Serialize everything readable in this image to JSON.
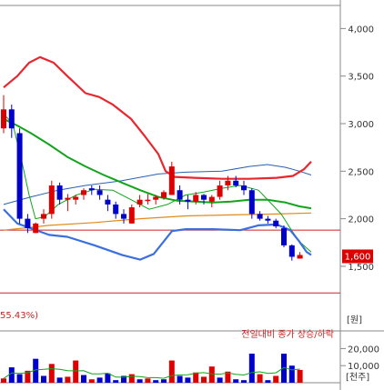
{
  "chart_data": {
    "type": "candlestick",
    "price_axis": {
      "unit": "[원]",
      "ticks": [
        1500,
        2000,
        2500,
        3000,
        3500,
        4000
      ],
      "tick_labels": [
        "1,500",
        "2,000",
        "2,500",
        "3,000",
        "3,500",
        "4,000"
      ],
      "range": [
        1050,
        4300
      ]
    },
    "volume_axis": {
      "unit": "[천주]",
      "ticks": [
        10000,
        20000
      ],
      "tick_labels": [
        "10,000",
        "20,000"
      ],
      "range": [
        0,
        25000
      ]
    },
    "current_price": 1600,
    "current_price_label": "1,600",
    "reference_lines": [
      1880,
      1220
    ],
    "annotation": "55.43%)",
    "volume_title": "전일대비 종가 상승/하락",
    "colors": {
      "up": "#dd0000",
      "down": "#0000cc",
      "bb_upper": "#e8262f",
      "bb_lower": "#3b6fe0",
      "bb_mid": "#2b5fb0",
      "ma_green": "#12a41b",
      "ma_orange": "#e08b1b",
      "ref_line": "#cc2222"
    },
    "candles": [
      {
        "o": 2950,
        "h": 3300,
        "l": 2900,
        "c": 3150
      },
      {
        "o": 3150,
        "h": 3200,
        "l": 2850,
        "c": 2950
      },
      {
        "o": 2900,
        "h": 2950,
        "l": 1950,
        "c": 2000
      },
      {
        "o": 2000,
        "h": 2050,
        "l": 1850,
        "c": 1900
      },
      {
        "o": 1850,
        "h": 1960,
        "l": 1850,
        "c": 1950
      },
      {
        "o": 2000,
        "h": 2100,
        "l": 1950,
        "c": 2050
      },
      {
        "o": 2050,
        "h": 2400,
        "l": 2000,
        "c": 2350
      },
      {
        "o": 2350,
        "h": 2380,
        "l": 2150,
        "c": 2200
      },
      {
        "o": 2200,
        "h": 2260,
        "l": 2080,
        "c": 2220
      },
      {
        "o": 2200,
        "h": 2250,
        "l": 2150,
        "c": 2230
      },
      {
        "o": 2250,
        "h": 2320,
        "l": 2200,
        "c": 2300
      },
      {
        "o": 2320,
        "h": 2350,
        "l": 2250,
        "c": 2300
      },
      {
        "o": 2300,
        "h": 2350,
        "l": 2200,
        "c": 2250
      },
      {
        "o": 2200,
        "h": 2250,
        "l": 2080,
        "c": 2150
      },
      {
        "o": 2150,
        "h": 2180,
        "l": 2000,
        "c": 2050
      },
      {
        "o": 2050,
        "h": 2100,
        "l": 1950,
        "c": 2000
      },
      {
        "o": 1950,
        "h": 2150,
        "l": 1950,
        "c": 2120
      },
      {
        "o": 2150,
        "h": 2250,
        "l": 2120,
        "c": 2200
      },
      {
        "o": 2200,
        "h": 2260,
        "l": 2150,
        "c": 2200
      },
      {
        "o": 2200,
        "h": 2250,
        "l": 2150,
        "c": 2230
      },
      {
        "o": 2220,
        "h": 2300,
        "l": 2200,
        "c": 2280
      },
      {
        "o": 2250,
        "h": 2600,
        "l": 2250,
        "c": 2550
      },
      {
        "o": 2300,
        "h": 2350,
        "l": 2150,
        "c": 2200
      },
      {
        "o": 2200,
        "h": 2250,
        "l": 2100,
        "c": 2180
      },
      {
        "o": 2180,
        "h": 2280,
        "l": 2150,
        "c": 2250
      },
      {
        "o": 2250,
        "h": 2260,
        "l": 2150,
        "c": 2200
      },
      {
        "o": 2180,
        "h": 2250,
        "l": 2120,
        "c": 2230
      },
      {
        "o": 2230,
        "h": 2400,
        "l": 2200,
        "c": 2350
      },
      {
        "o": 2350,
        "h": 2450,
        "l": 2300,
        "c": 2400
      },
      {
        "o": 2400,
        "h": 2450,
        "l": 2330,
        "c": 2350
      },
      {
        "o": 2350,
        "h": 2400,
        "l": 2250,
        "c": 2300
      },
      {
        "o": 2300,
        "h": 2320,
        "l": 2000,
        "c": 2050
      },
      {
        "o": 2050,
        "h": 2080,
        "l": 1980,
        "c": 2000
      },
      {
        "o": 2000,
        "h": 2030,
        "l": 1950,
        "c": 1980
      },
      {
        "o": 1980,
        "h": 2000,
        "l": 1900,
        "c": 1920
      },
      {
        "o": 1900,
        "h": 1930,
        "l": 1700,
        "c": 1720
      },
      {
        "o": 1720,
        "h": 1730,
        "l": 1560,
        "c": 1600
      },
      {
        "o": 1600,
        "h": 1650,
        "l": 1580,
        "c": 1600
      }
    ],
    "volumes": [
      {
        "v": 2500,
        "up": true
      },
      {
        "v": 9000,
        "up": false
      },
      {
        "v": 5000,
        "up": false
      },
      {
        "v": 7000,
        "up": true
      },
      {
        "v": 14000,
        "up": false
      },
      {
        "v": 4000,
        "up": false
      },
      {
        "v": 11000,
        "up": true
      },
      {
        "v": 3000,
        "up": false
      },
      {
        "v": 3500,
        "up": true
      },
      {
        "v": 13000,
        "up": true
      },
      {
        "v": 4500,
        "up": false
      },
      {
        "v": 2000,
        "up": true
      },
      {
        "v": 3000,
        "up": false
      },
      {
        "v": 5500,
        "up": false
      },
      {
        "v": 1500,
        "up": false
      },
      {
        "v": 4000,
        "up": false
      },
      {
        "v": 5000,
        "up": true
      },
      {
        "v": 2000,
        "up": false
      },
      {
        "v": 2500,
        "up": true
      },
      {
        "v": 1500,
        "up": false
      },
      {
        "v": 2000,
        "up": false
      },
      {
        "v": 13000,
        "up": true
      },
      {
        "v": 4000,
        "up": false
      },
      {
        "v": 3000,
        "up": false
      },
      {
        "v": 6000,
        "up": true
      },
      {
        "v": 3500,
        "up": true
      },
      {
        "v": 9500,
        "up": true
      },
      {
        "v": 3000,
        "up": false
      },
      {
        "v": 6500,
        "up": true
      },
      {
        "v": 2000,
        "up": false
      },
      {
        "v": 1500,
        "up": false
      },
      {
        "v": 17000,
        "up": false
      },
      {
        "v": 5000,
        "up": true
      },
      {
        "v": 1500,
        "up": false
      },
      {
        "v": 4000,
        "up": true
      },
      {
        "v": 17000,
        "up": false
      },
      {
        "v": 10000,
        "up": false
      },
      {
        "v": 7500,
        "up": true
      }
    ],
    "bollinger_upper": [
      [
        0,
        3380
      ],
      [
        15,
        3500
      ],
      [
        28,
        3640
      ],
      [
        40,
        3700
      ],
      [
        55,
        3640
      ],
      [
        70,
        3500
      ],
      [
        90,
        3320
      ],
      [
        105,
        3280
      ],
      [
        120,
        3200
      ],
      [
        140,
        3050
      ],
      [
        155,
        2870
      ],
      [
        170,
        2680
      ],
      [
        178,
        2500
      ],
      [
        188,
        2440
      ],
      [
        210,
        2430
      ],
      [
        240,
        2420
      ],
      [
        270,
        2420
      ],
      [
        300,
        2430
      ],
      [
        318,
        2450
      ],
      [
        330,
        2520
      ],
      [
        338,
        2600
      ]
    ],
    "bollinger_lower": [
      [
        0,
        2100
      ],
      [
        15,
        1950
      ],
      [
        30,
        1900
      ],
      [
        50,
        1830
      ],
      [
        70,
        1810
      ],
      [
        100,
        1720
      ],
      [
        130,
        1620
      ],
      [
        150,
        1570
      ],
      [
        165,
        1630
      ],
      [
        175,
        1750
      ],
      [
        185,
        1870
      ],
      [
        200,
        1890
      ],
      [
        230,
        1890
      ],
      [
        260,
        1880
      ],
      [
        280,
        1930
      ],
      [
        300,
        1940
      ],
      [
        315,
        1880
      ],
      [
        325,
        1760
      ],
      [
        333,
        1650
      ],
      [
        338,
        1620
      ]
    ],
    "bollinger_mid": [
      [
        0,
        2150
      ],
      [
        30,
        2230
      ],
      [
        60,
        2300
      ],
      [
        90,
        2350
      ],
      [
        130,
        2400
      ],
      [
        170,
        2470
      ],
      [
        200,
        2490
      ],
      [
        240,
        2500
      ],
      [
        270,
        2550
      ],
      [
        290,
        2570
      ],
      [
        310,
        2540
      ],
      [
        325,
        2500
      ],
      [
        338,
        2460
      ]
    ],
    "ma_short": [
      [
        0,
        3100
      ],
      [
        10,
        3000
      ],
      [
        20,
        2600
      ],
      [
        28,
        2250
      ],
      [
        35,
        2000
      ],
      [
        45,
        2020
      ],
      [
        60,
        2150
      ],
      [
        80,
        2250
      ],
      [
        100,
        2310
      ],
      [
        120,
        2300
      ],
      [
        140,
        2200
      ],
      [
        160,
        2100
      ],
      [
        180,
        2150
      ],
      [
        200,
        2250
      ],
      [
        220,
        2280
      ],
      [
        240,
        2320
      ],
      [
        260,
        2350
      ],
      [
        280,
        2300
      ],
      [
        295,
        2150
      ],
      [
        305,
        2050
      ],
      [
        315,
        1900
      ],
      [
        325,
        1760
      ],
      [
        338,
        1650
      ]
    ],
    "ma_green": [
      [
        0,
        3050
      ],
      [
        15,
        2980
      ],
      [
        30,
        2900
      ],
      [
        50,
        2780
      ],
      [
        70,
        2650
      ],
      [
        90,
        2550
      ],
      [
        110,
        2460
      ],
      [
        130,
        2380
      ],
      [
        150,
        2300
      ],
      [
        170,
        2230
      ],
      [
        190,
        2190
      ],
      [
        210,
        2180
      ],
      [
        230,
        2170
      ],
      [
        250,
        2180
      ],
      [
        270,
        2200
      ],
      [
        290,
        2200
      ],
      [
        310,
        2170
      ],
      [
        325,
        2130
      ],
      [
        338,
        2110
      ]
    ],
    "ma_orange": [
      [
        0,
        1880
      ],
      [
        50,
        1930
      ],
      [
        100,
        1960
      ],
      [
        150,
        2000
      ],
      [
        200,
        2030
      ],
      [
        250,
        2040
      ],
      [
        300,
        2050
      ],
      [
        338,
        2060
      ]
    ]
  }
}
